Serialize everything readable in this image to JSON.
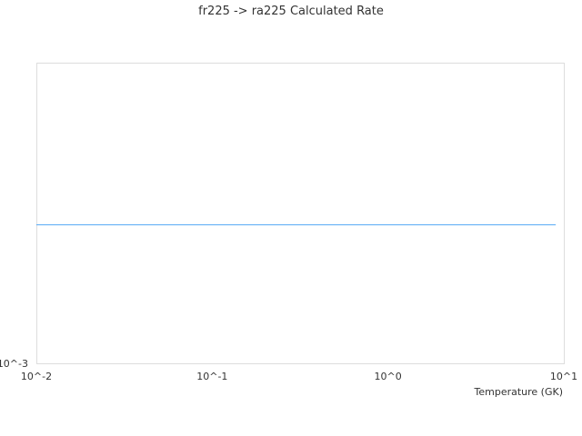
{
  "chart_data": {
    "type": "line",
    "title": "fr225 -> ra225 Calculated Rate",
    "xlabel": "Temperature (GK)",
    "ylabel": "",
    "x_scale": "log",
    "y_scale": "log",
    "xlim": [
      0.01,
      10
    ],
    "ylim": [
      0.001,
      0.01
    ],
    "x_tick_labels": [
      "10^-2",
      "10^-1",
      "10^0",
      "10^1"
    ],
    "y_tick_labels": [
      "10^-3"
    ],
    "grid": false,
    "series": [
      {
        "color": "#5aabf5",
        "x": [
          0.01,
          0.1,
          1,
          9
        ],
        "y": [
          0.0029,
          0.0029,
          0.0029,
          0.0029
        ]
      }
    ]
  }
}
